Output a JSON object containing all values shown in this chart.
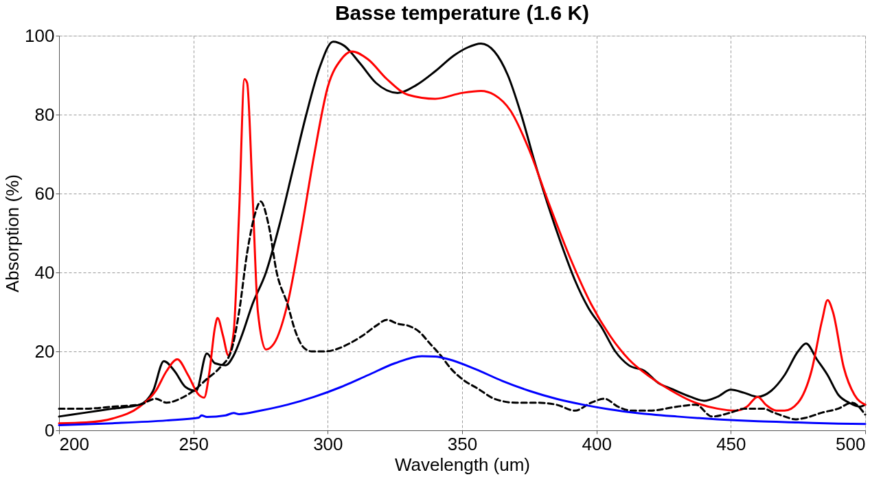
{
  "chart_data": {
    "type": "line",
    "title": "Basse temperature (1.6 K)",
    "xlabel": "Wavelength (um)",
    "ylabel": "Absorption (%)",
    "xlim": [
      200,
      500
    ],
    "xticks": [
      200,
      250,
      300,
      350,
      400,
      450,
      500
    ],
    "ylim": [
      0,
      100
    ],
    "yticks": [
      0,
      20,
      40,
      60,
      80,
      100
    ],
    "grid": true,
    "marker": "none",
    "series": [
      {
        "color": "#000000",
        "line_style": "solid",
        "x": [
          200,
          210,
          220,
          230,
          235,
          239,
          243,
          247,
          251,
          255,
          258,
          262,
          265,
          268,
          272,
          277,
          282,
          287,
          292,
          297,
          302,
          306,
          312,
          318,
          326,
          333,
          340,
          347,
          352,
          357,
          362,
          367,
          372,
          377,
          382,
          387,
          392,
          397,
          402,
          407,
          412,
          418,
          423,
          428,
          435,
          440,
          445,
          450,
          455,
          460,
          465,
          470,
          475,
          478,
          482,
          486,
          490,
          494,
          498,
          500
        ],
        "values": [
          3.5,
          4.5,
          5.5,
          6.5,
          10,
          17.5,
          15,
          11,
          10,
          19.5,
          17,
          16.5,
          19,
          24,
          32,
          40,
          52,
          66,
          80,
          92,
          98.5,
          97.5,
          93,
          88,
          85.5,
          87.5,
          91,
          95,
          97,
          98,
          96,
          90,
          80,
          68,
          57,
          47,
          38,
          31,
          26,
          20,
          16.5,
          15,
          12,
          10.5,
          8.5,
          7.5,
          8.5,
          10.3,
          9.5,
          8.5,
          10,
          14,
          20,
          22,
          18,
          14,
          9,
          7,
          6,
          6.5
        ]
      },
      {
        "color": "#ff0000",
        "line_style": "solid",
        "x": [
          200,
          210,
          220,
          230,
          236,
          240,
          244,
          248,
          252,
          254,
          256,
          258,
          259,
          261,
          263,
          265,
          267,
          269,
          270,
          272,
          274,
          277,
          280,
          285,
          290,
          295,
          300,
          305,
          309,
          315,
          322,
          330,
          340,
          350,
          357,
          362,
          368,
          375,
          382,
          390,
          398,
          405,
          412,
          420,
          428,
          435,
          445,
          452,
          456,
          460,
          463,
          467,
          470,
          475,
          480,
          484,
          486,
          488,
          492,
          496,
          500
        ],
        "values": [
          1.8,
          2,
          3,
          6,
          10,
          15,
          18,
          14,
          9,
          8.3,
          15,
          26,
          28.5,
          24,
          19,
          25,
          55,
          89,
          88,
          60,
          30,
          20.5,
          22,
          32,
          50,
          70,
          87,
          94,
          96,
          94,
          89,
          85,
          84,
          85.5,
          86,
          85,
          81,
          71,
          58,
          44,
          32,
          24,
          18,
          13.5,
          10,
          7.5,
          5.5,
          5,
          6,
          8.5,
          6.5,
          5,
          5,
          7,
          15,
          28,
          33,
          30,
          16,
          9,
          6.5
        ]
      },
      {
        "color": "#000000",
        "line_style": "dashed",
        "x": [
          200,
          210,
          220,
          230,
          236,
          240,
          245,
          250,
          255,
          260,
          264,
          267,
          270,
          273,
          275,
          278,
          281,
          285,
          288,
          291,
          294,
          299,
          303,
          308,
          313,
          318,
          322,
          326,
          330,
          334,
          338,
          342,
          346,
          350,
          356,
          362,
          370,
          378,
          385,
          392,
          398,
          403,
          408,
          413,
          420,
          430,
          437,
          443,
          450,
          455,
          462,
          466,
          470,
          474,
          478,
          484,
          490,
          495,
          500
        ],
        "values": [
          5.5,
          5.5,
          6,
          6.5,
          8,
          7,
          8,
          10,
          13,
          16,
          20,
          30,
          45,
          55,
          58,
          52,
          40,
          32,
          25,
          21,
          20,
          20,
          20.5,
          22,
          24,
          26.5,
          28,
          27,
          26.5,
          25,
          22,
          19,
          15.5,
          13,
          10.5,
          8,
          7,
          7,
          6.5,
          5,
          7,
          8,
          6,
          5,
          5,
          6,
          6.5,
          3.5,
          4.5,
          5.5,
          5.5,
          4.5,
          3.5,
          2.8,
          3.2,
          4.5,
          5.5,
          7,
          4
        ]
      },
      {
        "color": "#0000ff",
        "line_style": "solid",
        "x": [
          200,
          220,
          240,
          252,
          253,
          255,
          262,
          265,
          267,
          275,
          285,
          295,
          305,
          315,
          325,
          335,
          340,
          345,
          355,
          365,
          375,
          385,
          395,
          405,
          415,
          430,
          445,
          460,
          475,
          490,
          500
        ],
        "values": [
          1.3,
          1.8,
          2.5,
          3.2,
          3.8,
          3.4,
          3.8,
          4.4,
          4.1,
          5,
          6.5,
          8.5,
          11,
          14,
          17,
          18.8,
          18.7,
          18,
          15.5,
          12.5,
          10,
          8,
          6.5,
          5.3,
          4.4,
          3.5,
          2.8,
          2.3,
          2,
          1.7,
          1.6
        ]
      }
    ]
  }
}
